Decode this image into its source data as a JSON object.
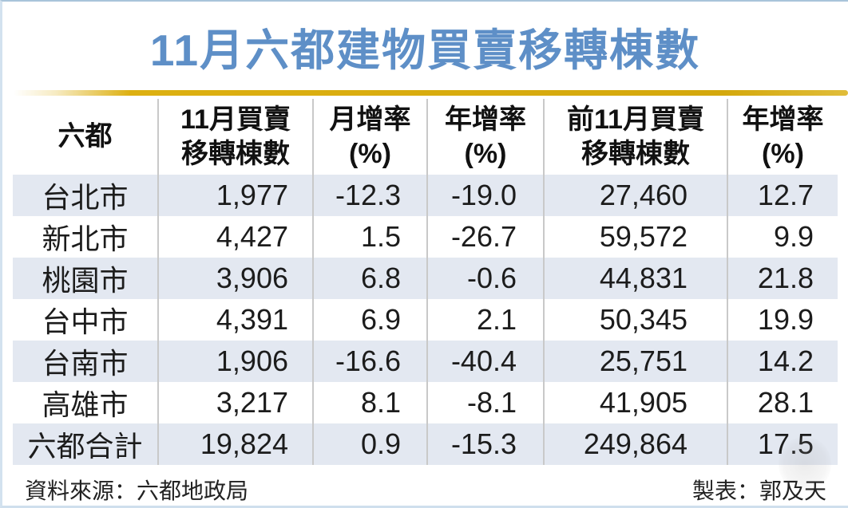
{
  "title": "11月六都建物買賣移轉棟數",
  "table": {
    "columns": [
      {
        "line1": "六都",
        "line2": ""
      },
      {
        "line1": "11月買賣",
        "line2": "移轉棟數"
      },
      {
        "line1": "月增率",
        "line2": "(%)"
      },
      {
        "line1": "年增率",
        "line2": "(%)"
      },
      {
        "line1": "前11月買賣",
        "line2": "移轉棟數"
      },
      {
        "line1": "年增率",
        "line2": "(%)"
      }
    ],
    "rows": [
      [
        "台北市",
        "1,977",
        "-12.3",
        "-19.0",
        "27,460",
        "12.7"
      ],
      [
        "新北市",
        "4,427",
        "1.5",
        "-26.7",
        "59,572",
        "9.9"
      ],
      [
        "桃園市",
        "3,906",
        "6.8",
        "-0.6",
        "44,831",
        "21.8"
      ],
      [
        "台中市",
        "4,391",
        "6.9",
        "2.1",
        "50,345",
        "19.9"
      ],
      [
        "台南市",
        "1,906",
        "-16.6",
        "-40.4",
        "25,751",
        "14.2"
      ],
      [
        "高雄市",
        "3,217",
        "8.1",
        "-8.1",
        "41,905",
        "28.1"
      ],
      [
        "六都合計",
        "19,824",
        "0.9",
        "-15.3",
        "249,864",
        "17.5"
      ]
    ]
  },
  "footer": {
    "source": "資料來源：六都地政局",
    "credit": "製表：郭及天"
  },
  "colors": {
    "title_blue": "#5e8fc7",
    "gold_rule": "#ddb011",
    "row_shade": "#e3e8f1",
    "grid_line": "#c9c9c9",
    "frame_blue": "#a9c4da"
  },
  "chart_data": {
    "type": "table",
    "title": "11月六都建物買賣移轉棟數",
    "columns": [
      "六都",
      "11月買賣移轉棟數",
      "月增率(%)",
      "年增率(%)",
      "前11月買賣移轉棟數",
      "年增率(%)"
    ],
    "rows": [
      [
        "台北市",
        1977,
        -12.3,
        -19.0,
        27460,
        12.7
      ],
      [
        "新北市",
        4427,
        1.5,
        -26.7,
        59572,
        9.9
      ],
      [
        "桃園市",
        3906,
        6.8,
        -0.6,
        44831,
        21.8
      ],
      [
        "台中市",
        4391,
        6.9,
        2.1,
        50345,
        19.9
      ],
      [
        "台南市",
        1906,
        -16.6,
        -40.4,
        25751,
        14.2
      ],
      [
        "高雄市",
        3217,
        8.1,
        -8.1,
        41905,
        28.1
      ],
      [
        "六都合計",
        19824,
        0.9,
        -15.3,
        249864,
        17.5
      ]
    ],
    "source": "資料來源：六都地政局",
    "credit": "製表：郭及天"
  }
}
